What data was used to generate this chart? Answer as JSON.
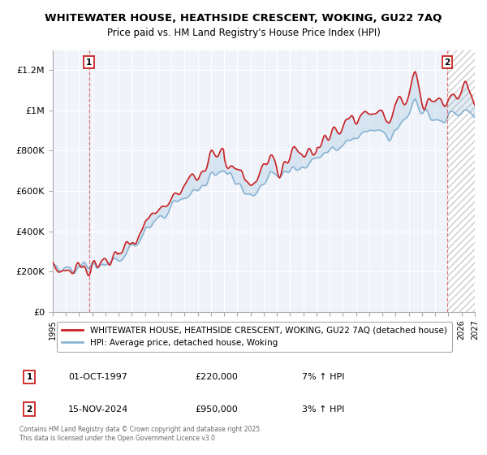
{
  "title": "WHITEWATER HOUSE, HEATHSIDE CRESCENT, WOKING, GU22 7AQ",
  "subtitle": "Price paid vs. HM Land Registry's House Price Index (HPI)",
  "sale1_date": "01-OCT-1997",
  "sale1_price": 220000,
  "sale1_hpi": "7% ↑ HPI",
  "sale2_date": "15-NOV-2024",
  "sale2_price": 950000,
  "sale2_hpi": "3% ↑ HPI",
  "legend_line1": "WHITEWATER HOUSE, HEATHSIDE CRESCENT, WOKING, GU22 7AQ (detached house)",
  "legend_line2": "HPI: Average price, detached house, Woking",
  "footer": "Contains HM Land Registry data © Crown copyright and database right 2025.\nThis data is licensed under the Open Government Licence v3.0.",
  "ylim": [
    0,
    1300000
  ],
  "yticks": [
    0,
    200000,
    400000,
    600000,
    800000,
    1000000,
    1200000
  ],
  "ytick_labels": [
    "£0",
    "£200K",
    "£400K",
    "£600K",
    "£800K",
    "£1M",
    "£1.2M"
  ],
  "x_start_year": 1995,
  "x_end_year": 2027,
  "sale1_year": 1997.75,
  "sale2_year": 2024.9,
  "hpi_color": "#8ab4d4",
  "price_color": "#cc2222",
  "marker_box_color": "#cc2222",
  "bg_color": "#ffffff",
  "grid_color": "#d0d8e8",
  "hatch_color": "#cccccc"
}
